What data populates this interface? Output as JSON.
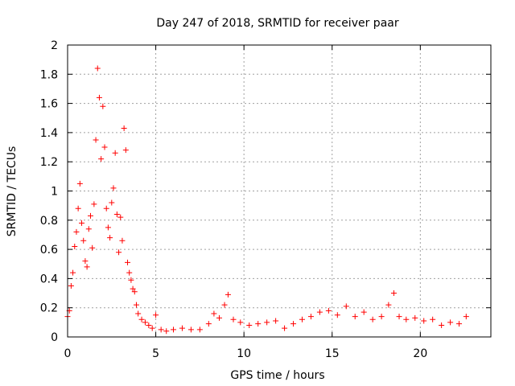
{
  "chart_data": {
    "type": "scatter",
    "title": "Day 247 of 2018, SRMTID for receiver paar",
    "xlabel": "GPS time / hours",
    "ylabel": "SRMTID / TECUs",
    "xlim": [
      0,
      24
    ],
    "ylim": [
      0,
      2
    ],
    "xticks": [
      0,
      5,
      10,
      15,
      20
    ],
    "xtick_labels": [
      "0",
      "5",
      "10",
      "15",
      "20"
    ],
    "yticks": [
      0,
      0.2,
      0.4,
      0.6,
      0.8,
      1,
      1.2,
      1.4,
      1.6,
      1.8,
      2
    ],
    "ytick_labels": [
      "0",
      "0.2",
      "0.4",
      "0.6",
      "0.8",
      "1",
      "1.2",
      "1.4",
      "1.6",
      "1.8",
      "2"
    ],
    "grid": true,
    "legend": "none",
    "marker": "+",
    "series": [
      {
        "name": "SRMTID",
        "color": "#ff0000",
        "x": [
          0.0,
          0.1,
          0.2,
          0.3,
          0.4,
          0.5,
          0.6,
          0.7,
          0.8,
          0.9,
          1.0,
          1.1,
          1.2,
          1.3,
          1.4,
          1.5,
          1.6,
          1.7,
          1.8,
          1.9,
          2.0,
          2.1,
          2.2,
          2.3,
          2.4,
          2.5,
          2.6,
          2.7,
          2.8,
          2.9,
          3.0,
          3.1,
          3.2,
          3.3,
          3.4,
          3.5,
          3.6,
          3.7,
          3.8,
          3.9,
          4.0,
          4.2,
          4.4,
          4.6,
          4.8,
          5.0,
          5.3,
          5.6,
          6.0,
          6.5,
          7.0,
          7.5,
          8.0,
          8.3,
          8.6,
          8.9,
          9.1,
          9.4,
          9.8,
          10.3,
          10.8,
          11.3,
          11.8,
          12.3,
          12.8,
          13.3,
          13.8,
          14.3,
          14.8,
          15.3,
          15.8,
          16.3,
          16.8,
          17.3,
          17.8,
          18.2,
          18.5,
          18.8,
          19.2,
          19.7,
          20.2,
          20.7,
          21.2,
          21.7,
          22.2,
          22.6
        ],
        "y": [
          0.14,
          0.18,
          0.35,
          0.44,
          0.62,
          0.72,
          0.88,
          1.05,
          0.78,
          0.66,
          0.52,
          0.48,
          0.74,
          0.83,
          0.61,
          0.91,
          1.35,
          1.84,
          1.64,
          1.22,
          1.58,
          1.3,
          0.88,
          0.75,
          0.68,
          0.92,
          1.02,
          1.26,
          0.84,
          0.58,
          0.82,
          0.66,
          1.43,
          1.28,
          0.51,
          0.44,
          0.39,
          0.33,
          0.31,
          0.22,
          0.16,
          0.12,
          0.1,
          0.08,
          0.06,
          0.15,
          0.05,
          0.04,
          0.05,
          0.06,
          0.05,
          0.05,
          0.09,
          0.16,
          0.13,
          0.22,
          0.29,
          0.12,
          0.1,
          0.08,
          0.09,
          0.1,
          0.11,
          0.06,
          0.09,
          0.12,
          0.14,
          0.17,
          0.18,
          0.15,
          0.21,
          0.14,
          0.17,
          0.12,
          0.14,
          0.22,
          0.3,
          0.14,
          0.12,
          0.13,
          0.11,
          0.12,
          0.08,
          0.1,
          0.09,
          0.14
        ]
      }
    ]
  }
}
